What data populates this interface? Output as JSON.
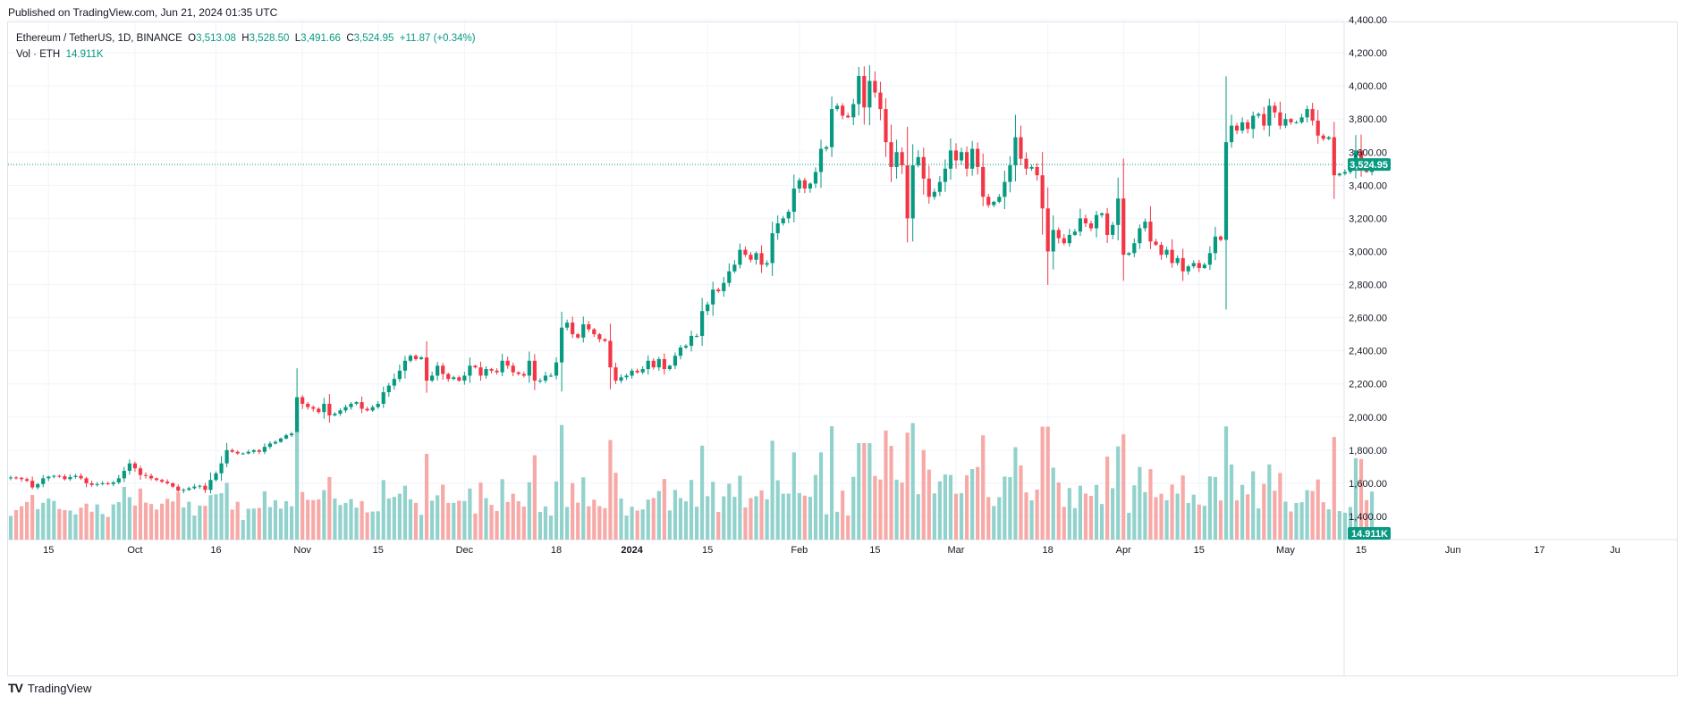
{
  "published": "Published on TradingView.com, Jun 21, 2024 01:35 UTC",
  "legend": {
    "symbol": "Ethereum / TetherUS, 1D, BINANCE",
    "o_label": "O",
    "o": "3,513.08",
    "h_label": "H",
    "h": "3,528.50",
    "l_label": "L",
    "l": "3,491.66",
    "c_label": "C",
    "c": "3,524.95",
    "change": "+11.87 (+0.34%)",
    "vol_label": "Vol · ETH",
    "vol": "14.911K"
  },
  "footer": {
    "logo": "TV",
    "brand": "TradingView"
  },
  "colors": {
    "up": "#089981",
    "down": "#f23645",
    "vol_up": "#92d2cc",
    "vol_down": "#f7a9a7",
    "grid": "#f0f3fa",
    "axis_text": "#131722"
  },
  "chart_data": {
    "type": "candlestick",
    "title": "Ethereum / TetherUS, 1D, BINANCE",
    "ylim": [
      1300,
      4400
    ],
    "y_ticks": [
      "1,400.00",
      "1,600.00",
      "1,800.00",
      "2,000.00",
      "2,200.00",
      "2,400.00",
      "2,600.00",
      "2,800.00",
      "3,000.00",
      "3,200.00",
      "3,400.00",
      "3,600.00",
      "3,800.00",
      "4,000.00",
      "4,200.00",
      "4,400.00"
    ],
    "y_tick_values": [
      1400,
      1600,
      1800,
      2000,
      2200,
      2400,
      2600,
      2800,
      3000,
      3200,
      3400,
      3600,
      3800,
      4000,
      4200,
      4400
    ],
    "x_ticks": [
      {
        "label": "15",
        "date": "2023-09-15"
      },
      {
        "label": "Oct",
        "date": "2023-10-01"
      },
      {
        "label": "16",
        "date": "2023-10-16"
      },
      {
        "label": "Nov",
        "date": "2023-11-01"
      },
      {
        "label": "15",
        "date": "2023-11-15"
      },
      {
        "label": "Dec",
        "date": "2023-12-01"
      },
      {
        "label": "18",
        "date": "2023-12-18"
      },
      {
        "label": "2024",
        "date": "2024-01-01"
      },
      {
        "label": "15",
        "date": "2024-01-15"
      },
      {
        "label": "Feb",
        "date": "2024-02-01"
      },
      {
        "label": "15",
        "date": "2024-02-15"
      },
      {
        "label": "Mar",
        "date": "2024-03-01"
      },
      {
        "label": "18",
        "date": "2024-03-18"
      },
      {
        "label": "Apr",
        "date": "2024-04-01"
      },
      {
        "label": "15",
        "date": "2024-04-15"
      },
      {
        "label": "May",
        "date": "2024-05-01"
      },
      {
        "label": "15",
        "date": "2024-05-15"
      },
      {
        "label": "Jun",
        "date": "2024-06-01"
      },
      {
        "label": "17",
        "date": "2024-06-17"
      },
      {
        "label": "Ju",
        "date": "2024-07-01"
      }
    ],
    "last_price": 3524.95,
    "last_price_label": "3,524.95",
    "last_volume_label": "14.911K",
    "start_date": "2023-09-08",
    "series_close": [
      1635,
      1633,
      1625,
      1615,
      1575,
      1595,
      1630,
      1640,
      1645,
      1642,
      1625,
      1638,
      1645,
      1630,
      1600,
      1590,
      1595,
      1600,
      1595,
      1605,
      1630,
      1675,
      1720,
      1690,
      1650,
      1645,
      1630,
      1620,
      1610,
      1600,
      1580,
      1555,
      1560,
      1570,
      1580,
      1585,
      1560,
      1620,
      1660,
      1720,
      1800,
      1790,
      1780,
      1780,
      1790,
      1800,
      1790,
      1820,
      1840,
      1850,
      1870,
      1890,
      1900,
      2120,
      2080,
      2060,
      2050,
      2030,
      2080,
      2010,
      2020,
      2040,
      2060,
      2080,
      2090,
      2050,
      2040,
      2060,
      2080,
      2150,
      2190,
      2230,
      2280,
      2340,
      2370,
      2350,
      2360,
      2220,
      2250,
      2310,
      2260,
      2230,
      2240,
      2220,
      2250,
      2310,
      2300,
      2250,
      2290,
      2280,
      2270,
      2340,
      2310,
      2270,
      2260,
      2250,
      2340,
      2220,
      2220,
      2250,
      2250,
      2330,
      2540,
      2570,
      2500,
      2480,
      2560,
      2530,
      2500,
      2470,
      2460,
      2300,
      2220,
      2240,
      2250,
      2280,
      2270,
      2290,
      2340,
      2300,
      2350,
      2290,
      2310,
      2370,
      2420,
      2430,
      2490,
      2490,
      2640,
      2680,
      2770,
      2760,
      2810,
      2880,
      2920,
      3010,
      2980,
      2950,
      2990,
      2920,
      2930,
      3110,
      3170,
      3200,
      3240,
      3380,
      3430,
      3380,
      3410,
      3480,
      3620,
      3630,
      3860,
      3880,
      3820,
      3810,
      3890,
      4060,
      3870,
      4030,
      3960,
      3860,
      3660,
      3510,
      3600,
      3520,
      3200,
      3520,
      3570,
      3440,
      3330,
      3360,
      3420,
      3500,
      3610,
      3550,
      3600,
      3500,
      3620,
      3510,
      3330,
      3280,
      3300,
      3330,
      3420,
      3520,
      3690,
      3560,
      3500,
      3510,
      3460,
      3260,
      3000,
      3130,
      3080,
      3050,
      3100,
      3120,
      3200,
      3170,
      3140,
      3220,
      3230,
      3100,
      3160,
      3320,
      2980,
      2990,
      3050,
      3140,
      3180,
      3060,
      3040,
      2980,
      3010,
      2930,
      2960,
      2880,
      2910,
      2930,
      2900,
      2920,
      2990,
      3090,
      3070,
      3660,
      3760,
      3730,
      3780,
      3740,
      3820,
      3830,
      3760,
      3880,
      3840,
      3760,
      3800,
      3780,
      3780,
      3810,
      3860,
      3790,
      3700,
      3680,
      3690,
      3460,
      3470,
      3480,
      3500,
      3610,
      3490,
      3480,
      3510,
      3525
    ],
    "volume_unit": "K ETH",
    "x_label": "",
    "y_label": ""
  }
}
